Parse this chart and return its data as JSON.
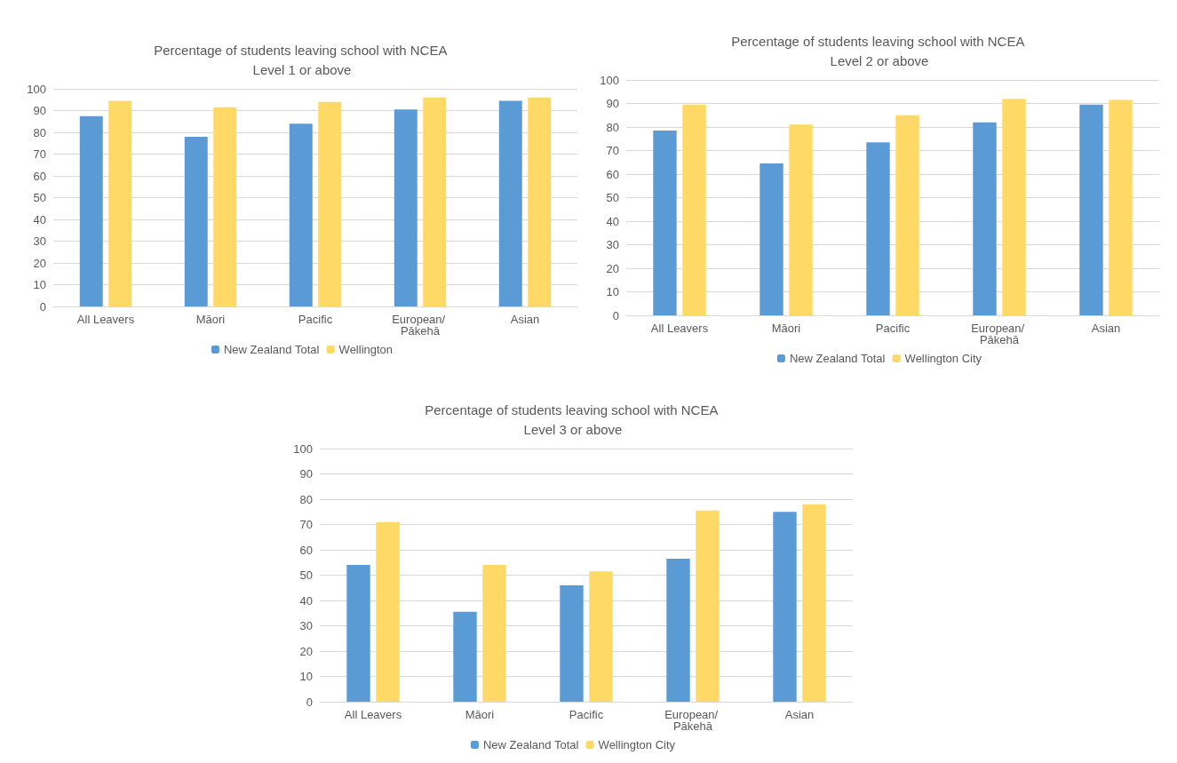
{
  "chart_data": [
    {
      "type": "bar",
      "title": "Percentage of students leaving school with NCEA Level 1 or above",
      "categories": [
        "All Leavers",
        "Māori",
        "Pacific",
        "European/ Pākehā",
        "Asian"
      ],
      "series": [
        {
          "name": "New Zealand Total",
          "color": "#5b9bd5",
          "values": [
            87.5,
            78,
            84,
            90.5,
            94.5
          ]
        },
        {
          "name": "Wellington",
          "color": "#ffd966",
          "values": [
            94.5,
            91.5,
            94,
            96,
            96
          ]
        }
      ],
      "ylim": [
        0,
        100
      ],
      "yticks": [
        0,
        10,
        20,
        30,
        40,
        50,
        60,
        70,
        80,
        90,
        100
      ],
      "grid": "y",
      "legend": "bottom"
    },
    {
      "type": "bar",
      "title": "Percentage of students leaving school with NCEA Level 2 or above",
      "categories": [
        "All Leavers",
        "Māori",
        "Pacific",
        "European/ Pākehā",
        "Asian"
      ],
      "series": [
        {
          "name": "New Zealand Total",
          "color": "#5b9bd5",
          "values": [
            78.5,
            64.5,
            73.5,
            82,
            89.5
          ]
        },
        {
          "name": "Wellington City",
          "color": "#ffd966",
          "values": [
            89.5,
            81,
            85,
            92,
            91.5
          ]
        }
      ],
      "ylim": [
        0,
        100
      ],
      "yticks": [
        0,
        10,
        20,
        30,
        40,
        50,
        60,
        70,
        80,
        90,
        100
      ],
      "grid": "y",
      "legend": "bottom"
    },
    {
      "type": "bar",
      "title": "Percentage of students leaving school with NCEA Level 3 or above",
      "categories": [
        "All Leavers",
        "Māori",
        "Pacific",
        "European/ Pākehā",
        "Asian"
      ],
      "series": [
        {
          "name": "New Zealand Total",
          "color": "#5b9bd5",
          "values": [
            54,
            35.5,
            46,
            56.5,
            75
          ]
        },
        {
          "name": "Wellington City",
          "color": "#ffd966",
          "values": [
            71,
            54,
            51.5,
            75.5,
            78
          ]
        }
      ],
      "ylim": [
        0,
        100
      ],
      "yticks": [
        0,
        10,
        20,
        30,
        40,
        50,
        60,
        70,
        80,
        90,
        100
      ],
      "grid": "y",
      "legend": "bottom"
    }
  ]
}
